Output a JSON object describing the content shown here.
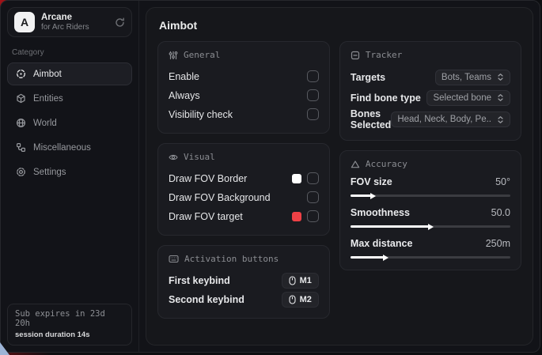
{
  "colors": {
    "accent_red": "#ef4146",
    "swatch_white": "#ffffff",
    "background_red": "#c0151b",
    "window_bg": "#121318",
    "card_bg": "#1a1b20"
  },
  "sidebar": {
    "logo": {
      "letter": "A",
      "title": "Arcane",
      "subtitle": "for Arc Riders",
      "refresh_icon": "refresh-icon"
    },
    "category_label": "Category",
    "items": [
      {
        "label": "Aimbot",
        "icon": "crosshair-icon",
        "active": true
      },
      {
        "label": "Entities",
        "icon": "cube-icon",
        "active": false
      },
      {
        "label": "World",
        "icon": "globe-icon",
        "active": false
      },
      {
        "label": "Miscellaneous",
        "icon": "workflow-icon",
        "active": false
      },
      {
        "label": "Settings",
        "icon": "gear-icon",
        "active": false
      }
    ],
    "footer": {
      "line1": "Sub expires in 23d 20h",
      "line2": "session duration 14s"
    }
  },
  "main": {
    "title": "Aimbot",
    "general": {
      "title": "General",
      "icon": "sliders-icon",
      "rows": [
        {
          "label": "Enable",
          "checked": false
        },
        {
          "label": "Always",
          "checked": false
        },
        {
          "label": "Visibility check",
          "checked": false
        }
      ]
    },
    "visual": {
      "title": "Visual",
      "icon": "eye-icon",
      "rows": [
        {
          "label": "Draw FOV Border",
          "swatch": "#ffffff",
          "checked": false
        },
        {
          "label": "Draw FOV Background",
          "swatch": null,
          "checked": false
        },
        {
          "label": "Draw FOV target",
          "swatch": "#ef4146",
          "checked": false
        }
      ]
    },
    "activation": {
      "title": "Activation buttons",
      "icon": "keyboard-icon",
      "rows": [
        {
          "label": "First keybind",
          "key": "M1"
        },
        {
          "label": "Second keybind",
          "key": "M2"
        }
      ]
    },
    "tracker": {
      "title": "Tracker",
      "icon": "square-minus-icon",
      "rows": [
        {
          "label": "Targets",
          "value": "Bots, Teams"
        },
        {
          "label": "Find bone type",
          "value": "Selected bone"
        },
        {
          "label": "Bones Selected",
          "value": "Head, Neck, Body, Pe.."
        }
      ]
    },
    "accuracy": {
      "title": "Accuracy",
      "icon": "triangle-icon",
      "rows": [
        {
          "label": "FOV size",
          "value": "50°",
          "percent": 13
        },
        {
          "label": "Smoothness",
          "value": "50.0",
          "percent": 49
        },
        {
          "label": "Max distance",
          "value": "250m",
          "percent": 21
        }
      ]
    }
  }
}
